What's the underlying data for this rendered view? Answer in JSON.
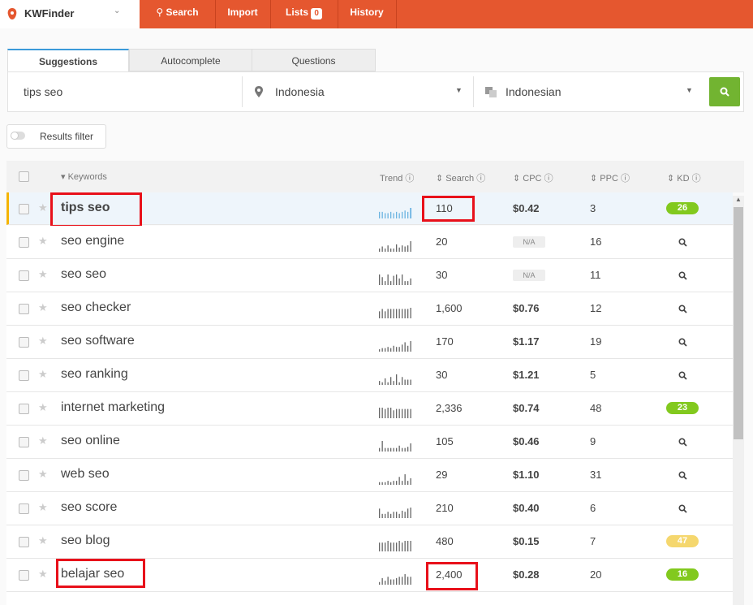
{
  "nav": {
    "brand": "KWFinder",
    "items": [
      "Search",
      "Import",
      "Lists",
      "History"
    ],
    "lists_badge": "0"
  },
  "tabs": [
    "Suggestions",
    "Autocomplete",
    "Questions"
  ],
  "search": {
    "query": "tips seo",
    "location": "Indonesia",
    "language": "Indonesian"
  },
  "filter_button": "Results filter",
  "table": {
    "headers": [
      "Keywords",
      "Trend",
      "Search",
      "CPC",
      "PPC",
      "KD"
    ],
    "rows": [
      {
        "keyword": "tips seo",
        "search": "110",
        "cpc": "$0.42",
        "ppc": "3",
        "kd": 26,
        "active": true,
        "highlighted": true,
        "trend": [
          5,
          5,
          4,
          4,
          5,
          4,
          5,
          4,
          5,
          6,
          5,
          8
        ]
      },
      {
        "keyword": "seo engine",
        "search": "20",
        "cpc": "N/A",
        "ppc": "16",
        "kd": null,
        "trend": [
          3,
          5,
          3,
          6,
          3,
          3,
          7,
          4,
          6,
          5,
          6,
          10
        ]
      },
      {
        "keyword": "seo seo",
        "search": "30",
        "cpc": "N/A",
        "ppc": "11",
        "kd": null,
        "trend": [
          8,
          6,
          3,
          8,
          3,
          7,
          8,
          5,
          8,
          3,
          3,
          5
        ]
      },
      {
        "keyword": "seo checker",
        "search": "1,600",
        "cpc": "$0.76",
        "ppc": "12",
        "kd": null,
        "trend": [
          6,
          8,
          6,
          8,
          8,
          8,
          8,
          8,
          8,
          8,
          8,
          9
        ]
      },
      {
        "keyword": "seo software",
        "search": "170",
        "cpc": "$1.17",
        "ppc": "19",
        "kd": null,
        "trend": [
          2,
          3,
          3,
          4,
          3,
          5,
          4,
          4,
          6,
          8,
          5,
          9
        ]
      },
      {
        "keyword": "seo ranking",
        "search": "30",
        "cpc": "$1.21",
        "ppc": "5",
        "kd": null,
        "trend": [
          3,
          2,
          5,
          2,
          6,
          3,
          8,
          2,
          6,
          4,
          4,
          4
        ]
      },
      {
        "keyword": "internet marketing",
        "search": "2,336",
        "cpc": "$0.74",
        "ppc": "48",
        "kd": 23,
        "trend": [
          8,
          8,
          7,
          8,
          8,
          6,
          7,
          7,
          7,
          7,
          7,
          7
        ]
      },
      {
        "keyword": "seo online",
        "search": "105",
        "cpc": "$0.46",
        "ppc": "9",
        "kd": null,
        "trend": [
          3,
          9,
          3,
          3,
          3,
          3,
          3,
          5,
          3,
          3,
          4,
          7
        ]
      },
      {
        "keyword": "web seo",
        "search": "29",
        "cpc": "$1.10",
        "ppc": "31",
        "kd": null,
        "trend": [
          2,
          2,
          2,
          3,
          2,
          3,
          3,
          6,
          3,
          8,
          3,
          5
        ]
      },
      {
        "keyword": "seo score",
        "search": "210",
        "cpc": "$0.40",
        "ppc": "6",
        "kd": null,
        "trend": [
          9,
          4,
          4,
          6,
          4,
          6,
          6,
          4,
          7,
          6,
          9,
          10
        ]
      },
      {
        "keyword": "seo blog",
        "search": "480",
        "cpc": "$0.15",
        "ppc": "7",
        "kd": 47,
        "trend": [
          5,
          5,
          5,
          6,
          5,
          5,
          5,
          6,
          5,
          6,
          6,
          6
        ]
      },
      {
        "keyword": "belajar seo",
        "search": "2,400",
        "cpc": "$0.28",
        "ppc": "20",
        "kd": 16,
        "highlighted": true,
        "trend": [
          2,
          5,
          3,
          6,
          4,
          4,
          5,
          6,
          6,
          8,
          6,
          6
        ]
      }
    ]
  }
}
